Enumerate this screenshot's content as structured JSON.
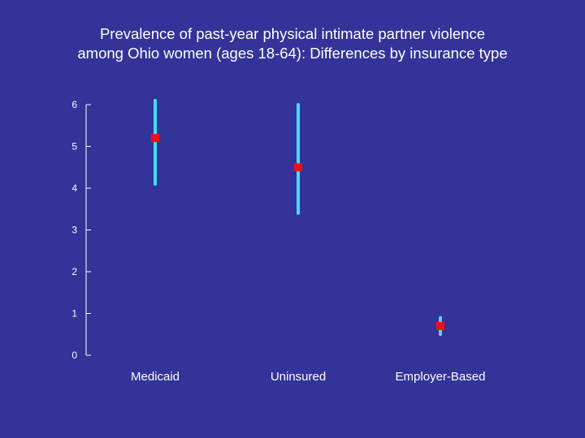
{
  "chart_data": {
    "type": "scatter",
    "title": "Prevalence of past-year physical intimate partner violence among Ohio women (ages 18-64): Differences by insurance type",
    "title_lines": [
      "Prevalence of past-year physical intimate partner violence",
      "among Ohio women (ages 18-64): Differences by insurance type"
    ],
    "xlabel": "",
    "ylabel": "",
    "categories": [
      "Medicaid",
      "Uninsured",
      "Employer-Based"
    ],
    "series": [
      {
        "values": [
          5.2,
          4.5,
          0.7
        ],
        "lower": [
          4.1,
          3.4,
          0.5
        ],
        "upper": [
          6.1,
          6.0,
          0.9
        ]
      }
    ],
    "ylim": [
      0,
      6
    ],
    "yticks": [
      0,
      1,
      2,
      3,
      4,
      5,
      6
    ],
    "grid": false,
    "legend": "none",
    "colors": {
      "background": "#333399",
      "point": "#ee1111",
      "error_bar": "#44ddff",
      "axis": "#ffffff"
    }
  }
}
